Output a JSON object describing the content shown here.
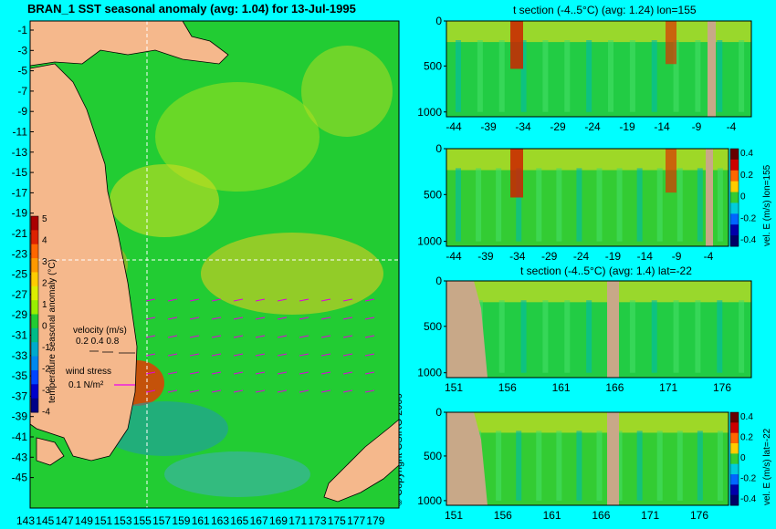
{
  "chart_data": [
    {
      "type": "heatmap",
      "title": "BRAN_1 SST seasonal anomaly (avg: 1.04) for 13-Jul-1995",
      "x_ticks": [
        "143",
        "145",
        "147",
        "149",
        "151",
        "153",
        "155",
        "157",
        "159",
        "161",
        "163",
        "165",
        "167",
        "169",
        "171",
        "173",
        "175",
        "177",
        "179"
      ],
      "y_ticks": [
        "-1",
        "-3",
        "-5",
        "-7",
        "-9",
        "-11",
        "-13",
        "-15",
        "-17",
        "-19",
        "-21",
        "-23",
        "-25",
        "-27",
        "-29",
        "-31",
        "-33",
        "-35",
        "-37",
        "-39",
        "-41",
        "-43",
        "-45"
      ],
      "xlim": [
        142,
        180
      ],
      "ylim": [
        -45,
        1
      ],
      "colorbar_label": "temperature seasonal anomaly (°C)",
      "colorbar_ticks": [
        "5",
        "4",
        "3",
        "2",
        "1",
        "0",
        "-1",
        "-2",
        "-3",
        "-4"
      ],
      "colorbar_range": [
        -4,
        5
      ],
      "velocity_legend": {
        "label": "velocity (m/s)",
        "values": "0.2 0.4 0.8"
      },
      "wind_legend": {
        "label": "wind stress",
        "value": "0.1 N/m²"
      },
      "crosshair": {
        "lon": 155,
        "lat": -22
      }
    },
    {
      "type": "heatmap",
      "title": "t section (-4..5°C) (avg: 1.24) lon=155",
      "x_ticks": [
        "-44",
        "-39",
        "-34",
        "-29",
        "-24",
        "-19",
        "-14",
        "-9",
        "-4"
      ],
      "y_ticks": [
        "0",
        "500",
        "1000"
      ],
      "xlim": [
        -45,
        0
      ],
      "ylim": [
        1050,
        0
      ]
    },
    {
      "type": "heatmap",
      "title": "",
      "x_ticks": [
        "-44",
        "-39",
        "-34",
        "-29",
        "-24",
        "-19",
        "-14",
        "-9",
        "-4"
      ],
      "y_ticks": [
        "0",
        "500",
        "1000"
      ],
      "colorbar_label": "vel. E (m/s) lon=155",
      "colorbar_ticks": [
        "0.4",
        "0.2",
        "0",
        "-0.2",
        "-0.4"
      ],
      "colorbar_range": [
        -0.4,
        0.4
      ]
    },
    {
      "type": "heatmap",
      "title": "t section (-4..5°C) (avg: 1.4) lat=-22",
      "x_ticks": [
        "151",
        "156",
        "161",
        "166",
        "171",
        "176"
      ],
      "y_ticks": [
        "0",
        "500",
        "1000"
      ],
      "xlim": [
        150,
        180
      ],
      "ylim": [
        1050,
        0
      ]
    },
    {
      "type": "heatmap",
      "title": "",
      "x_ticks": [
        "151",
        "156",
        "161",
        "166",
        "171",
        "176"
      ],
      "y_ticks": [
        "0",
        "500",
        "1000"
      ],
      "colorbar_label": "vel. E (m/s) lat=-22",
      "colorbar_ticks": [
        "0.4",
        "0.2",
        "0",
        "-0.2",
        "-0.4"
      ],
      "colorbar_range": [
        -0.4,
        0.4
      ]
    }
  ],
  "copyright": "© Copyright CSIRO 2006",
  "colors": {
    "background": "#00ffff",
    "land": "#f5b88c",
    "seafloor": "#c8a888",
    "ocean": "#22cc33"
  }
}
